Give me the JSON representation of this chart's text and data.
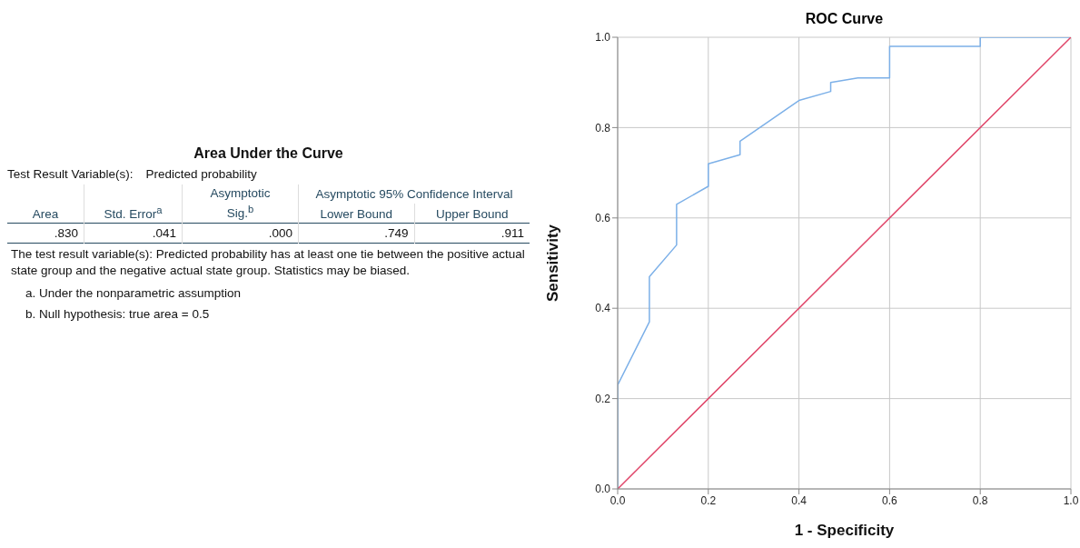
{
  "chart_data": [
    {
      "type": "other",
      "title": "Area Under the Curve",
      "annotations": [
        "Test Result Variable(s):",
        "Predicted probability",
        "Area",
        "Std. Error$^{a}$",
        "Asymptotic Sig.$^{b}$",
        "Asymptotic 95% Confidence Interval",
        "Lower Bound",
        "Upper Bound",
        ".830",
        ".041",
        ".000",
        ".749",
        ".911",
        "The test result variable(s): Predicted probability has at least one tie between the positive actual state group and the negative actual state group. Statistics may be biased.",
        "a. Under the nonparametric assumption",
        "b. Null hypothesis: true area = 0.5"
      ]
    },
    {
      "type": "line",
      "title": "ROC Curve",
      "xlabel": "1 - Specificity",
      "ylabel": "Sensitivity",
      "xlim": [
        0,
        1
      ],
      "ylim": [
        0,
        1
      ],
      "xticks": [
        {
          "value": 0,
          "label": "0.0"
        },
        {
          "value": 0.2,
          "label": "0.2"
        },
        {
          "value": 0.4,
          "label": "0.4"
        },
        {
          "value": 0.6,
          "label": "0.6"
        },
        {
          "value": 0.8,
          "label": "0.8"
        },
        {
          "value": 1,
          "label": "1.0"
        }
      ],
      "yticks": [
        {
          "value": 0,
          "label": "0.0"
        },
        {
          "value": 0.2,
          "label": "0.2"
        },
        {
          "value": 0.4,
          "label": "0.4"
        },
        {
          "value": 0.6,
          "label": "0.6"
        },
        {
          "value": 0.8,
          "label": "0.8"
        },
        {
          "value": 1,
          "label": "1.0"
        }
      ],
      "grid": true,
      "marker": "none",
      "series": [
        {
          "color": "#7cb0e8",
          "x": [
            0,
            0,
            0.07,
            0.07,
            0.13,
            0.13,
            0.2,
            0.2,
            0.27,
            0.27,
            0.4,
            0.47,
            0.47,
            0.53,
            0.6,
            0.6,
            0.8,
            0.8,
            1
          ],
          "values": [
            0,
            0.23,
            0.37,
            0.47,
            0.54,
            0.63,
            0.67,
            0.72,
            0.74,
            0.77,
            0.86,
            0.88,
            0.9,
            0.91,
            0.91,
            0.98,
            0.98,
            1,
            1
          ]
        },
        {
          "color": "#e0476a",
          "x": [
            0,
            1
          ],
          "values": [
            0,
            1
          ]
        }
      ]
    }
  ]
}
